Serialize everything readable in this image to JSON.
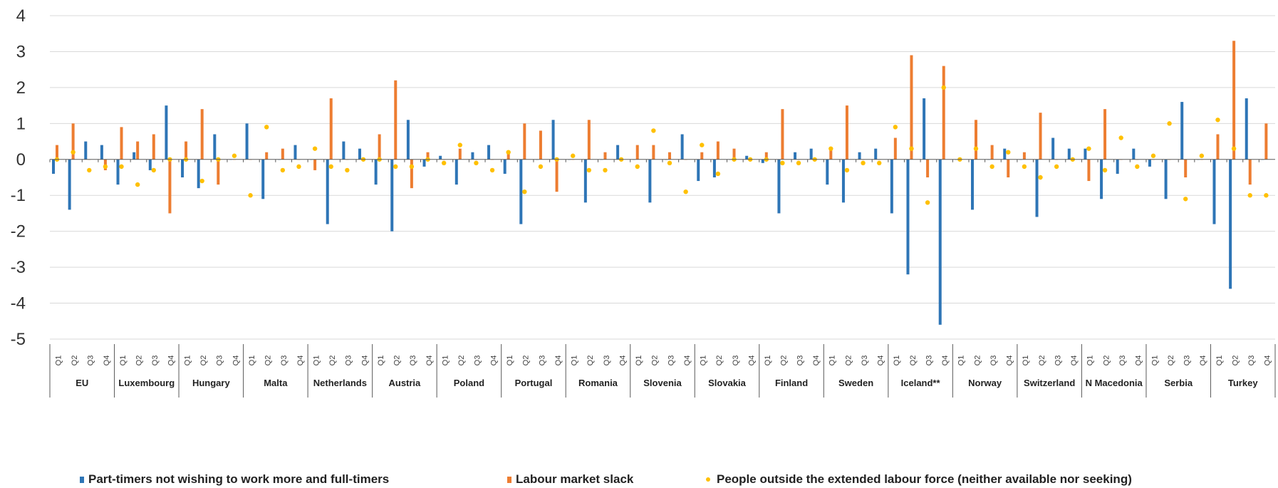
{
  "colors": {
    "part_timers": "#2e75b6",
    "slack": "#ed7d31",
    "outside": "#ffc000",
    "grid": "#d9d9d9",
    "axis": "#595959"
  },
  "chart_data": {
    "type": "bar",
    "title": "",
    "xlabel": "",
    "ylabel": "",
    "ylim": [
      -5,
      4
    ],
    "yticks": [
      4,
      3,
      2,
      1,
      0,
      -1,
      -2,
      -3,
      -4,
      -5
    ],
    "grid": true,
    "legend_position": "bottom",
    "quarter_labels": [
      "Q1",
      "Q2",
      "Q3",
      "Q4"
    ],
    "categories": [
      "EU",
      "Luxembourg",
      "Hungary",
      "Malta",
      "Netherlands",
      "Austria",
      "Poland",
      "Portugal",
      "Romania",
      "Slovenia",
      "Slovakia",
      "Finland",
      "Sweden",
      "Iceland**",
      "Norway",
      "Switzerland",
      "N Macedonia",
      "Serbia",
      "Turkey"
    ],
    "series": [
      {
        "name": "Part-timers not wishing to work more and full-timers",
        "marker": "bar",
        "values": [
          [
            -0.4,
            -1.4,
            0.5,
            0.4
          ],
          [
            -0.7,
            0.2,
            -0.3,
            1.5
          ],
          [
            -0.5,
            -0.8,
            0.7,
            0.0
          ],
          [
            1.0,
            -1.1,
            0.0,
            0.4
          ],
          [
            0.0,
            -1.8,
            0.5,
            0.3
          ],
          [
            -0.7,
            -2.0,
            1.1,
            -0.2
          ],
          [
            0.1,
            -0.7,
            0.2,
            0.4
          ],
          [
            -0.4,
            -1.8,
            0.0,
            1.1
          ],
          [
            0.0,
            -1.2,
            0.0,
            0.4
          ],
          [
            0.0,
            -1.2,
            0.0,
            0.7
          ],
          [
            -0.6,
            -0.5,
            0.0,
            0.1
          ],
          [
            -0.1,
            -1.5,
            0.2,
            0.3
          ],
          [
            -0.7,
            -1.2,
            0.2,
            0.3
          ],
          [
            -1.5,
            -3.2,
            1.7,
            -4.6
          ],
          [
            0.0,
            -1.4,
            0.0,
            0.3
          ],
          [
            0.0,
            -1.6,
            0.6,
            0.3
          ],
          [
            0.3,
            -1.1,
            -0.4,
            0.3
          ],
          [
            -0.2,
            -1.1,
            1.6,
            0.0
          ],
          [
            -1.8,
            -3.6,
            1.7,
            0.0
          ]
        ]
      },
      {
        "name": "Labour market slack",
        "marker": "bar",
        "values": [
          [
            0.4,
            1.0,
            0.0,
            -0.3
          ],
          [
            0.9,
            0.5,
            0.7,
            -1.5
          ],
          [
            0.5,
            1.4,
            -0.7,
            0.0
          ],
          [
            0.0,
            0.2,
            0.3,
            0.0
          ],
          [
            -0.3,
            1.7,
            0.0,
            0.0
          ],
          [
            0.7,
            2.2,
            -0.8,
            0.2
          ],
          [
            0.0,
            0.3,
            0.0,
            0.0
          ],
          [
            0.2,
            1.0,
            0.8,
            -0.9
          ],
          [
            0.0,
            1.1,
            0.2,
            0.0
          ],
          [
            0.4,
            0.4,
            0.2,
            0.0
          ],
          [
            0.2,
            0.5,
            0.3,
            0.0
          ],
          [
            0.2,
            1.4,
            0.0,
            0.0
          ],
          [
            0.3,
            1.5,
            0.0,
            0.0
          ],
          [
            0.6,
            2.9,
            -0.5,
            2.6
          ],
          [
            0.0,
            1.1,
            0.4,
            -0.5
          ],
          [
            0.2,
            1.3,
            0.0,
            0.0
          ],
          [
            -0.6,
            1.4,
            0.0,
            0.0
          ],
          [
            0.0,
            0.0,
            -0.5,
            0.0
          ],
          [
            0.7,
            3.3,
            -0.7,
            1.0
          ]
        ]
      },
      {
        "name": "People outside the extended labour force (neither available nor seeking)",
        "marker": "dot",
        "values": [
          [
            0.0,
            0.2,
            -0.3,
            -0.2
          ],
          [
            -0.2,
            -0.7,
            -0.3,
            0.0
          ],
          [
            0.0,
            -0.6,
            0.0,
            0.1
          ],
          [
            -1.0,
            0.9,
            -0.3,
            -0.2
          ],
          [
            0.3,
            -0.2,
            -0.3,
            0.0
          ],
          [
            0.0,
            -0.2,
            -0.2,
            0.0
          ],
          [
            -0.1,
            0.4,
            -0.1,
            -0.3
          ],
          [
            0.2,
            -0.9,
            -0.2,
            0.0
          ],
          [
            0.1,
            -0.3,
            -0.3,
            0.0
          ],
          [
            -0.2,
            0.8,
            -0.1,
            -0.9
          ],
          [
            0.4,
            -0.4,
            0.0,
            0.0
          ],
          [
            0.0,
            -0.1,
            -0.1,
            0.0
          ],
          [
            0.3,
            -0.3,
            -0.1,
            -0.1
          ],
          [
            0.9,
            0.3,
            -1.2,
            2.0
          ],
          [
            0.0,
            0.3,
            -0.2,
            0.2
          ],
          [
            -0.2,
            -0.5,
            -0.2,
            0.0
          ],
          [
            0.3,
            -0.3,
            0.6,
            -0.2
          ],
          [
            0.1,
            1.0,
            -1.1,
            0.1
          ],
          [
            1.1,
            0.3,
            -1.0,
            -1.0
          ]
        ]
      }
    ]
  }
}
